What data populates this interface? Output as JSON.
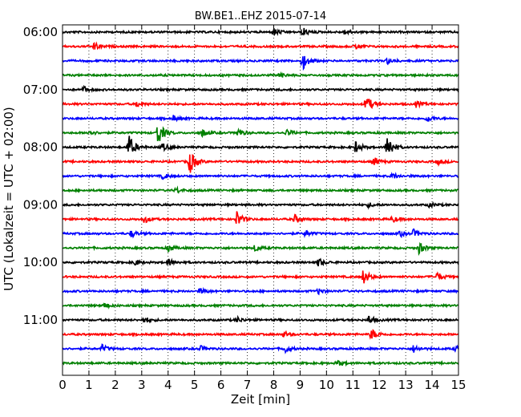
{
  "chart_data": {
    "type": "line",
    "title": "BW.BE1..EHZ 2015-07-14",
    "xlabel": "Zeit  [min]",
    "ylabel": "UTC (Lokalzeit = UTC + 02:00)",
    "xlim": [
      0,
      15
    ],
    "x_ticks": [
      0,
      1,
      2,
      3,
      4,
      5,
      6,
      7,
      8,
      9,
      10,
      11,
      12,
      13,
      14,
      15
    ],
    "y_tick_labels": [
      "06:00",
      "07:00",
      "08:00",
      "09:00",
      "10:00",
      "11:00"
    ],
    "grid": "x-dotted",
    "trace_colors": [
      "#000000",
      "#ff0000",
      "#0000ff",
      "#008000"
    ],
    "traces": [
      {
        "start": "06:00",
        "events": [
          {
            "t": 8.0,
            "a": 0.5
          },
          {
            "t": 9.1,
            "a": 0.6
          },
          {
            "t": 10.7,
            "a": 0.4
          }
        ]
      },
      {
        "start": "06:15",
        "events": [
          {
            "t": 1.2,
            "a": 0.5
          },
          {
            "t": 11.1,
            "a": 0.35
          }
        ]
      },
      {
        "start": "06:30",
        "events": [
          {
            "t": 9.1,
            "a": 1.2
          },
          {
            "t": 12.3,
            "a": 0.4
          }
        ]
      },
      {
        "start": "06:45",
        "events": [
          {
            "t": 8.2,
            "a": 0.4
          }
        ]
      },
      {
        "start": "07:00",
        "events": [
          {
            "t": 0.8,
            "a": 0.4
          }
        ]
      },
      {
        "start": "07:15",
        "events": [
          {
            "t": 2.8,
            "a": 0.4
          },
          {
            "t": 11.5,
            "a": 1.3
          },
          {
            "t": 13.4,
            "a": 0.4
          }
        ]
      },
      {
        "start": "07:30",
        "events": [
          {
            "t": 4.2,
            "a": 0.4
          },
          {
            "t": 13.8,
            "a": 0.5
          }
        ]
      },
      {
        "start": "07:45",
        "events": [
          {
            "t": 1.0,
            "a": 0.4
          },
          {
            "t": 3.6,
            "a": 1.8
          },
          {
            "t": 5.3,
            "a": 0.5
          },
          {
            "t": 6.6,
            "a": 0.6
          },
          {
            "t": 8.5,
            "a": 0.5
          }
        ]
      },
      {
        "start": "08:00",
        "events": [
          {
            "t": 2.5,
            "a": 1.8
          },
          {
            "t": 3.8,
            "a": 0.5
          },
          {
            "t": 11.1,
            "a": 0.8
          },
          {
            "t": 12.3,
            "a": 1.9
          }
        ]
      },
      {
        "start": "08:15",
        "events": [
          {
            "t": 4.8,
            "a": 1.8
          },
          {
            "t": 11.8,
            "a": 0.6
          },
          {
            "t": 14.2,
            "a": 0.4
          }
        ]
      },
      {
        "start": "08:30",
        "events": [
          {
            "t": 3.8,
            "a": 0.4
          },
          {
            "t": 12.5,
            "a": 0.4
          }
        ]
      },
      {
        "start": "08:45",
        "events": [
          {
            "t": 4.3,
            "a": 0.4
          }
        ]
      },
      {
        "start": "09:00",
        "events": [
          {
            "t": 11.6,
            "a": 0.3
          },
          {
            "t": 13.9,
            "a": 0.3
          }
        ]
      },
      {
        "start": "09:15",
        "events": [
          {
            "t": 3.1,
            "a": 0.5
          },
          {
            "t": 6.6,
            "a": 1.1
          },
          {
            "t": 8.8,
            "a": 0.6
          },
          {
            "t": 12.5,
            "a": 0.4
          }
        ]
      },
      {
        "start": "09:30",
        "events": [
          {
            "t": 2.6,
            "a": 0.5
          },
          {
            "t": 9.2,
            "a": 0.4
          },
          {
            "t": 12.8,
            "a": 0.4
          },
          {
            "t": 13.3,
            "a": 0.5
          }
        ]
      },
      {
        "start": "09:45",
        "events": [
          {
            "t": 4.0,
            "a": 0.5
          },
          {
            "t": 7.3,
            "a": 0.5
          },
          {
            "t": 13.5,
            "a": 0.8
          }
        ]
      },
      {
        "start": "10:00",
        "events": [
          {
            "t": 2.7,
            "a": 0.5
          },
          {
            "t": 4.0,
            "a": 0.5
          },
          {
            "t": 9.7,
            "a": 0.6
          }
        ]
      },
      {
        "start": "10:15",
        "events": [
          {
            "t": 11.4,
            "a": 1.1
          },
          {
            "t": 14.2,
            "a": 0.6
          }
        ]
      },
      {
        "start": "10:30",
        "events": [
          {
            "t": 5.2,
            "a": 0.4
          },
          {
            "t": 9.7,
            "a": 0.4
          }
        ]
      },
      {
        "start": "10:45",
        "events": [
          {
            "t": 1.6,
            "a": 0.3
          }
        ]
      },
      {
        "start": "11:00",
        "events": [
          {
            "t": 3.1,
            "a": 0.4
          },
          {
            "t": 6.6,
            "a": 0.4
          },
          {
            "t": 11.6,
            "a": 0.6
          }
        ]
      },
      {
        "start": "11:15",
        "events": [
          {
            "t": 8.4,
            "a": 0.4
          },
          {
            "t": 11.7,
            "a": 0.8
          }
        ]
      },
      {
        "start": "11:30",
        "events": [
          {
            "t": 1.5,
            "a": 0.5
          },
          {
            "t": 5.2,
            "a": 0.4
          },
          {
            "t": 8.4,
            "a": 0.6
          },
          {
            "t": 13.3,
            "a": 0.5
          },
          {
            "t": 14.9,
            "a": 0.4
          }
        ]
      },
      {
        "start": "11:45",
        "events": [
          {
            "t": 10.4,
            "a": 0.4
          }
        ]
      }
    ]
  }
}
